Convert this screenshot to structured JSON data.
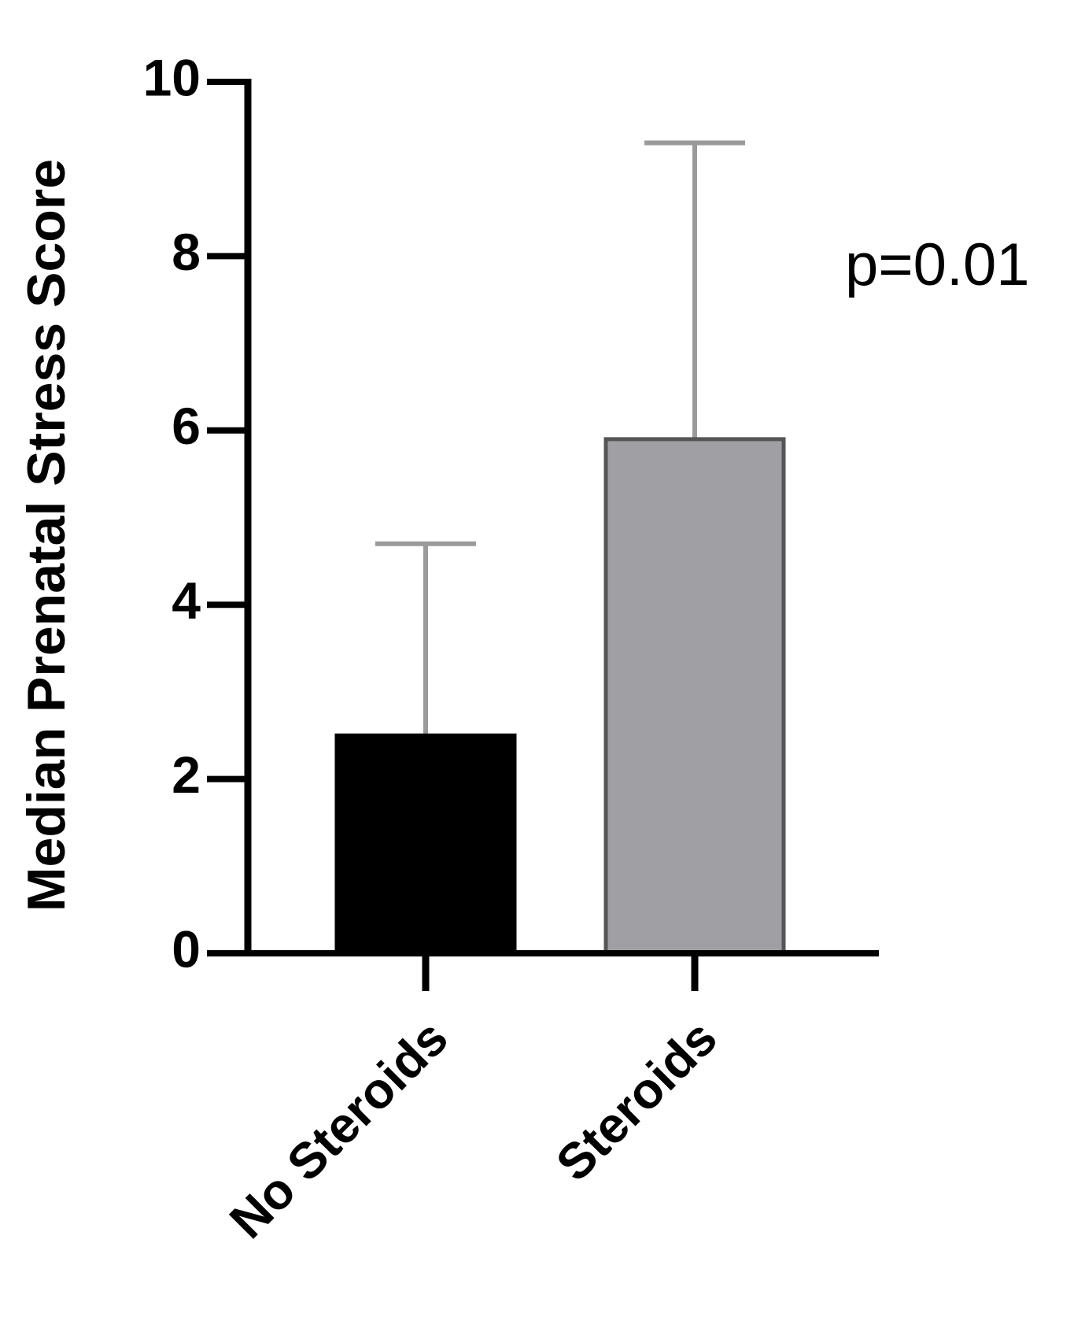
{
  "chart_data": {
    "type": "bar",
    "ylabel": "Median Prenatal Stress Score",
    "categories": [
      "No Steroids",
      "Steroids"
    ],
    "values": [
      2.5,
      5.9
    ],
    "errors": [
      2.2,
      3.4
    ],
    "colors": [
      "#000000",
      "#a09fa4"
    ],
    "error_color": "#9a9a9a",
    "annotation": "p=0.01",
    "ylim": [
      0,
      10
    ],
    "yticks": [
      0,
      2,
      4,
      6,
      8,
      10
    ],
    "grid": false
  }
}
